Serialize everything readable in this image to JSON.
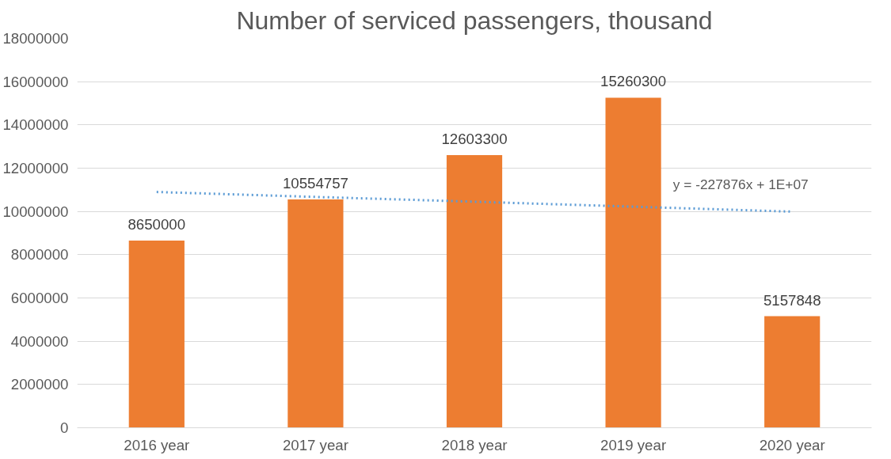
{
  "chart_data": {
    "type": "bar",
    "title": "Number of serviced passengers, thousand",
    "categories": [
      "2016 year",
      "2017 year",
      "2018 year",
      "2019 year",
      "2020 year"
    ],
    "series": [
      {
        "color": "#ed7d31",
        "values": [
          8650000,
          10554757,
          12603300,
          15260300,
          5157848
        ],
        "value_labels": [
          "8650000",
          "10554757",
          "12603300",
          "15260300",
          "5157848"
        ]
      },
      {
        "type": "line",
        "color": "#5b9bd5",
        "line_style": "dotted",
        "values": [
          10900000,
          10670000,
          10450000,
          10220000,
          9990000
        ]
      }
    ],
    "ylim": [
      0,
      18000000
    ],
    "yticks": [
      0,
      2000000,
      4000000,
      6000000,
      8000000,
      10000000,
      12000000,
      14000000,
      16000000,
      18000000
    ],
    "grid": "y",
    "annotations": [
      "y = -227876x + 1E+07"
    ]
  }
}
